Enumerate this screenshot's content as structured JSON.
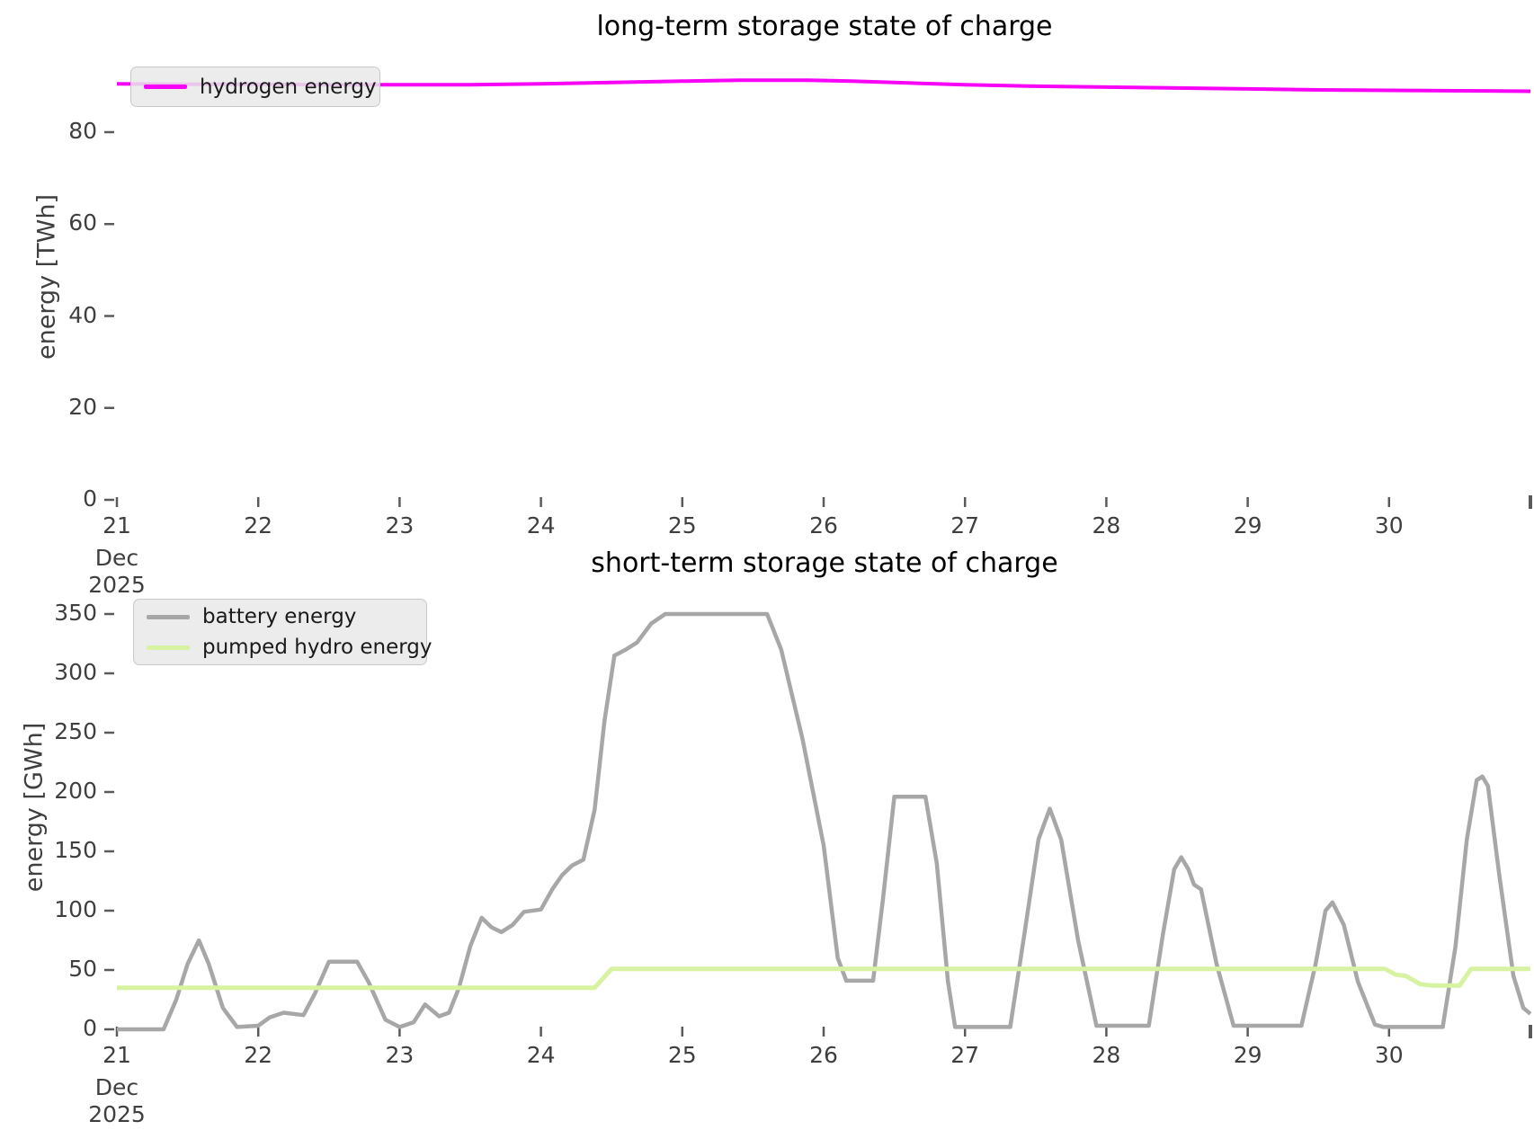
{
  "page": {
    "background": "#ffffff",
    "tick_color": "#3f3f3f"
  },
  "chart_data": [
    {
      "type": "line",
      "title": "long-term storage state of charge",
      "ylabel": "energy [TWh]",
      "x_axis": {
        "tick_values": [
          21,
          22,
          23,
          24,
          25,
          26,
          27,
          28,
          29,
          30
        ],
        "tick_labels": [
          "21",
          "22",
          "23",
          "24",
          "25",
          "26",
          "27",
          "28",
          "29",
          "30"
        ],
        "month_label": "Dec",
        "year_label": "2025",
        "xlim": [
          21,
          31
        ]
      },
      "y_axis": {
        "tick_values": [
          0,
          20,
          40,
          60,
          80
        ],
        "tick_labels": [
          "0",
          "20",
          "40",
          "60",
          "80"
        ],
        "ylim": [
          0,
          93
        ]
      },
      "legend": [
        {
          "label": "hydrogen energy",
          "color": "#f701f7"
        }
      ],
      "series": [
        {
          "name": "hydrogen energy",
          "color": "#f701f7",
          "width": 4,
          "points": [
            [
              21,
              90.5
            ],
            [
              21.5,
              90.4
            ],
            [
              22,
              90.4
            ],
            [
              22.5,
              90.3
            ],
            [
              23,
              90.3
            ],
            [
              23.5,
              90.3
            ],
            [
              24,
              90.5
            ],
            [
              24.5,
              90.8
            ],
            [
              25,
              91.1
            ],
            [
              25.4,
              91.3
            ],
            [
              25.9,
              91.3
            ],
            [
              26.2,
              91.1
            ],
            [
              26.6,
              90.7
            ],
            [
              27,
              90.3
            ],
            [
              27.5,
              90.0
            ],
            [
              28,
              89.8
            ],
            [
              28.5,
              89.6
            ],
            [
              29,
              89.4
            ],
            [
              29.5,
              89.2
            ],
            [
              30,
              89.1
            ],
            [
              30.5,
              89.0
            ],
            [
              31,
              88.9
            ]
          ]
        }
      ]
    },
    {
      "type": "line",
      "title": "short-term storage state of charge",
      "ylabel": "energy [GWh]",
      "x_axis": {
        "tick_values": [
          21,
          22,
          23,
          24,
          25,
          26,
          27,
          28,
          29,
          30
        ],
        "tick_labels": [
          "21",
          "22",
          "23",
          "24",
          "25",
          "26",
          "27",
          "28",
          "29",
          "30"
        ],
        "month_label": "Dec",
        "year_label": "2025",
        "xlim": [
          21,
          31
        ]
      },
      "y_axis": {
        "tick_values": [
          0,
          50,
          100,
          150,
          200,
          250,
          300,
          350
        ],
        "tick_labels": [
          "0",
          "50",
          "100",
          "150",
          "200",
          "250",
          "300",
          "350"
        ],
        "ylim": [
          0,
          367
        ]
      },
      "legend": [
        {
          "label": "battery energy",
          "color": "#a7a7a7"
        },
        {
          "label": "pumped hydro energy",
          "color": "#d7f3a2"
        }
      ],
      "series": [
        {
          "name": "battery energy",
          "color": "#a7a7a7",
          "width": 4.5,
          "points": [
            [
              21.0,
              0
            ],
            [
              21.33,
              0
            ],
            [
              21.42,
              25
            ],
            [
              21.5,
              55
            ],
            [
              21.58,
              75
            ],
            [
              21.65,
              55
            ],
            [
              21.75,
              18
            ],
            [
              21.85,
              2
            ],
            [
              22.0,
              3
            ],
            [
              22.08,
              10
            ],
            [
              22.18,
              14
            ],
            [
              22.32,
              12
            ],
            [
              22.4,
              30
            ],
            [
              22.5,
              57
            ],
            [
              22.7,
              57
            ],
            [
              22.78,
              40
            ],
            [
              22.9,
              8
            ],
            [
              23.0,
              2
            ],
            [
              23.1,
              6
            ],
            [
              23.18,
              21
            ],
            [
              23.28,
              11
            ],
            [
              23.35,
              14
            ],
            [
              23.42,
              35
            ],
            [
              23.5,
              70
            ],
            [
              23.58,
              94
            ],
            [
              23.65,
              86
            ],
            [
              23.72,
              82
            ],
            [
              23.8,
              88
            ],
            [
              23.88,
              99
            ],
            [
              24.0,
              101
            ],
            [
              24.08,
              118
            ],
            [
              24.15,
              130
            ],
            [
              24.22,
              138
            ],
            [
              24.3,
              143
            ],
            [
              24.38,
              185
            ],
            [
              24.45,
              260
            ],
            [
              24.52,
              315
            ],
            [
              24.6,
              320
            ],
            [
              24.68,
              326
            ],
            [
              24.78,
              342
            ],
            [
              24.88,
              350
            ],
            [
              25.6,
              350
            ],
            [
              25.7,
              320
            ],
            [
              25.85,
              245
            ],
            [
              26.0,
              155
            ],
            [
              26.1,
              60
            ],
            [
              26.16,
              41
            ],
            [
              26.35,
              41
            ],
            [
              26.42,
              110
            ],
            [
              26.5,
              196
            ],
            [
              26.72,
              196
            ],
            [
              26.8,
              140
            ],
            [
              26.88,
              40
            ],
            [
              26.93,
              2
            ],
            [
              27.32,
              2
            ],
            [
              27.42,
              80
            ],
            [
              27.52,
              160
            ],
            [
              27.6,
              186
            ],
            [
              27.68,
              160
            ],
            [
              27.8,
              75
            ],
            [
              27.93,
              3
            ],
            [
              28.3,
              3
            ],
            [
              28.4,
              80
            ],
            [
              28.48,
              135
            ],
            [
              28.53,
              145
            ],
            [
              28.58,
              135
            ],
            [
              28.62,
              122
            ],
            [
              28.67,
              118
            ],
            [
              28.78,
              55
            ],
            [
              28.9,
              3
            ],
            [
              29.38,
              3
            ],
            [
              29.48,
              55
            ],
            [
              29.55,
              100
            ],
            [
              29.6,
              107
            ],
            [
              29.68,
              88
            ],
            [
              29.78,
              40
            ],
            [
              29.9,
              4
            ],
            [
              29.96,
              2
            ],
            [
              30.38,
              2
            ],
            [
              30.47,
              70
            ],
            [
              30.55,
              160
            ],
            [
              30.62,
              210
            ],
            [
              30.66,
              213
            ],
            [
              30.7,
              205
            ],
            [
              30.78,
              130
            ],
            [
              30.88,
              45
            ],
            [
              30.95,
              18
            ],
            [
              31.0,
              13
            ]
          ]
        },
        {
          "name": "pumped hydro energy",
          "color": "#d7f3a2",
          "width": 5,
          "points": [
            [
              21.0,
              35
            ],
            [
              24.38,
              35
            ],
            [
              24.5,
              51
            ],
            [
              29.97,
              51
            ],
            [
              30.05,
              46
            ],
            [
              30.12,
              45
            ],
            [
              30.22,
              38
            ],
            [
              30.3,
              37
            ],
            [
              30.5,
              37
            ],
            [
              30.58,
              51
            ],
            [
              31.0,
              51
            ]
          ]
        }
      ]
    }
  ]
}
